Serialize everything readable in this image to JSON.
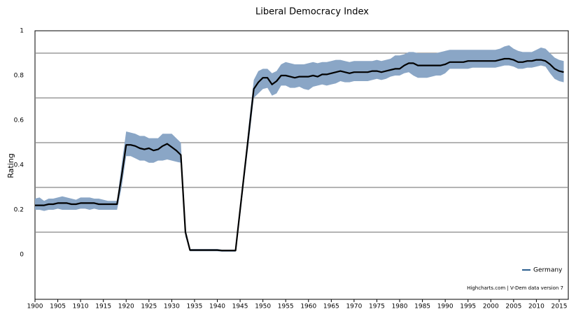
{
  "chart_data": {
    "type": "line",
    "title": "Liberal Democracy Index",
    "y_label": "Rating",
    "credits": "Highcharts.com | V-Dem data version 7",
    "x": [
      1900,
      1901,
      1902,
      1903,
      1904,
      1905,
      1906,
      1907,
      1908,
      1909,
      1910,
      1911,
      1912,
      1913,
      1914,
      1915,
      1916,
      1917,
      1918,
      1919,
      1920,
      1921,
      1922,
      1923,
      1924,
      1925,
      1926,
      1927,
      1928,
      1929,
      1930,
      1931,
      1932,
      1933,
      1934,
      1935,
      1936,
      1937,
      1938,
      1939,
      1940,
      1941,
      1942,
      1943,
      1944,
      1945,
      1946,
      1947,
      1948,
      1949,
      1950,
      1951,
      1952,
      1953,
      1954,
      1955,
      1956,
      1957,
      1958,
      1959,
      1960,
      1961,
      1962,
      1963,
      1964,
      1965,
      1966,
      1967,
      1968,
      1969,
      1970,
      1971,
      1972,
      1973,
      1974,
      1975,
      1976,
      1977,
      1978,
      1979,
      1980,
      1981,
      1982,
      1983,
      1984,
      1985,
      1986,
      1987,
      1988,
      1989,
      1990,
      1991,
      1992,
      1993,
      1994,
      1995,
      1996,
      1997,
      1998,
      1999,
      2000,
      2001,
      2002,
      2003,
      2004,
      2005,
      2006,
      2007,
      2008,
      2009,
      2010,
      2011,
      2012,
      2013,
      2014,
      2015,
      2016
    ],
    "series": [
      {
        "name": "Germany",
        "color": "#000000",
        "legend_color": "#2c5f8f",
        "values": [
          0.22,
          0.22,
          0.22,
          0.225,
          0.225,
          0.23,
          0.23,
          0.23,
          0.225,
          0.225,
          0.23,
          0.23,
          0.23,
          0.23,
          0.225,
          0.225,
          0.225,
          0.225,
          0.225,
          0.35,
          0.49,
          0.49,
          0.485,
          0.475,
          0.47,
          0.475,
          0.465,
          0.47,
          0.485,
          0.495,
          0.48,
          0.465,
          0.445,
          0.1,
          0.02,
          0.02,
          0.02,
          0.02,
          0.02,
          0.02,
          0.02,
          0.018,
          0.018,
          0.018,
          0.018,
          0.2,
          0.38,
          0.56,
          0.74,
          0.77,
          0.79,
          0.79,
          0.76,
          0.775,
          0.8,
          0.8,
          0.795,
          0.79,
          0.795,
          0.795,
          0.795,
          0.8,
          0.795,
          0.805,
          0.805,
          0.81,
          0.815,
          0.82,
          0.815,
          0.81,
          0.815,
          0.815,
          0.815,
          0.815,
          0.82,
          0.82,
          0.815,
          0.82,
          0.825,
          0.83,
          0.83,
          0.845,
          0.855,
          0.855,
          0.845,
          0.845,
          0.845,
          0.845,
          0.845,
          0.845,
          0.85,
          0.86,
          0.86,
          0.86,
          0.86,
          0.865,
          0.865,
          0.865,
          0.865,
          0.865,
          0.865,
          0.865,
          0.87,
          0.875,
          0.875,
          0.87,
          0.86,
          0.86,
          0.865,
          0.865,
          0.87,
          0.87,
          0.865,
          0.85,
          0.83,
          0.82,
          0.815
        ]
      }
    ],
    "band": {
      "color": "#8aa6c6",
      "upper": [
        0.25,
        0.255,
        0.24,
        0.25,
        0.25,
        0.255,
        0.26,
        0.255,
        0.25,
        0.245,
        0.255,
        0.255,
        0.255,
        0.25,
        0.25,
        0.245,
        0.24,
        0.24,
        0.24,
        0.4,
        0.55,
        0.545,
        0.54,
        0.53,
        0.53,
        0.52,
        0.52,
        0.52,
        0.54,
        0.54,
        0.54,
        0.52,
        0.5,
        0.12,
        0.025,
        0.025,
        0.025,
        0.025,
        0.025,
        0.025,
        0.025,
        0.022,
        0.022,
        0.022,
        0.022,
        0.22,
        0.4,
        0.6,
        0.78,
        0.82,
        0.83,
        0.83,
        0.81,
        0.82,
        0.85,
        0.86,
        0.855,
        0.85,
        0.85,
        0.85,
        0.855,
        0.86,
        0.855,
        0.86,
        0.86,
        0.865,
        0.87,
        0.87,
        0.865,
        0.86,
        0.865,
        0.865,
        0.865,
        0.865,
        0.865,
        0.87,
        0.865,
        0.87,
        0.875,
        0.89,
        0.89,
        0.895,
        0.905,
        0.905,
        0.9,
        0.9,
        0.9,
        0.9,
        0.9,
        0.905,
        0.91,
        0.915,
        0.915,
        0.915,
        0.915,
        0.915,
        0.915,
        0.915,
        0.915,
        0.915,
        0.915,
        0.915,
        0.92,
        0.93,
        0.935,
        0.92,
        0.91,
        0.905,
        0.905,
        0.905,
        0.915,
        0.925,
        0.92,
        0.9,
        0.88,
        0.87,
        0.865
      ],
      "lower": [
        0.2,
        0.2,
        0.195,
        0.2,
        0.2,
        0.205,
        0.2,
        0.2,
        0.2,
        0.2,
        0.205,
        0.205,
        0.2,
        0.205,
        0.2,
        0.2,
        0.2,
        0.2,
        0.2,
        0.3,
        0.44,
        0.44,
        0.43,
        0.42,
        0.42,
        0.41,
        0.41,
        0.42,
        0.42,
        0.425,
        0.42,
        0.415,
        0.41,
        0.08,
        0.015,
        0.015,
        0.015,
        0.015,
        0.015,
        0.015,
        0.015,
        0.013,
        0.013,
        0.013,
        0.013,
        0.17,
        0.35,
        0.52,
        0.7,
        0.72,
        0.74,
        0.745,
        0.71,
        0.72,
        0.755,
        0.755,
        0.745,
        0.745,
        0.75,
        0.74,
        0.735,
        0.75,
        0.755,
        0.76,
        0.755,
        0.76,
        0.765,
        0.775,
        0.77,
        0.77,
        0.775,
        0.775,
        0.775,
        0.775,
        0.78,
        0.785,
        0.78,
        0.785,
        0.795,
        0.8,
        0.8,
        0.81,
        0.815,
        0.8,
        0.79,
        0.79,
        0.79,
        0.795,
        0.8,
        0.8,
        0.81,
        0.83,
        0.83,
        0.83,
        0.83,
        0.83,
        0.835,
        0.835,
        0.835,
        0.835,
        0.835,
        0.835,
        0.84,
        0.845,
        0.845,
        0.84,
        0.83,
        0.83,
        0.835,
        0.835,
        0.84,
        0.845,
        0.84,
        0.81,
        0.785,
        0.775,
        0.77
      ]
    },
    "xlim": [
      1900,
      2017
    ],
    "xticks": [
      1900,
      1905,
      1910,
      1915,
      1920,
      1925,
      1930,
      1935,
      1940,
      1945,
      1950,
      1955,
      1960,
      1965,
      1970,
      1975,
      1980,
      1985,
      1990,
      1995,
      2000,
      2005,
      2010,
      2015
    ],
    "ylim": [
      -0.2,
      1
    ],
    "yticks": [
      0,
      0.2,
      0.4,
      0.6,
      0.8,
      1
    ],
    "ygrid": [
      0.1,
      0.3,
      0.5,
      0.7,
      0.9
    ],
    "grid": true,
    "legend": "lower right"
  }
}
